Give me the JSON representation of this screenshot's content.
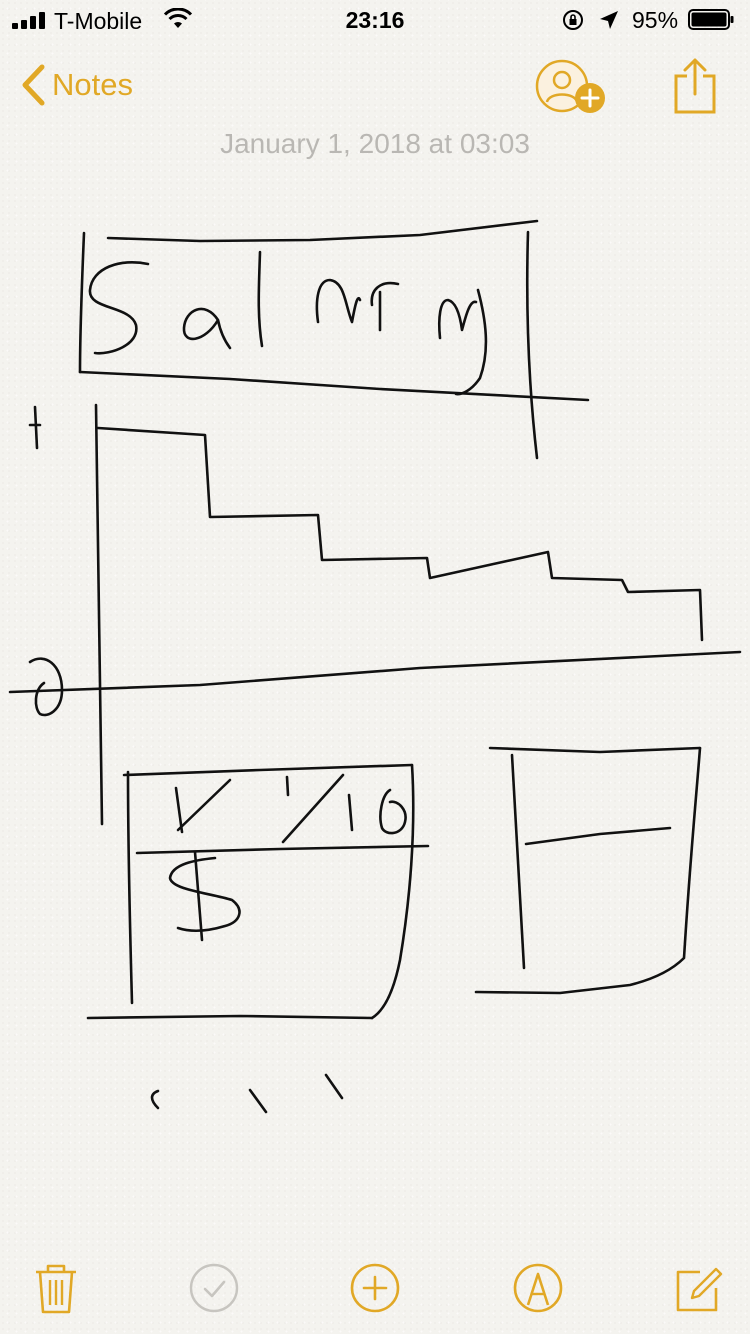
{
  "status_bar": {
    "carrier": "T-Mobile",
    "time": "23:16",
    "battery_percent": "95%",
    "icons": [
      "signal-icon",
      "wifi-icon",
      "rotation-lock-icon",
      "location-arrow-icon",
      "battery-icon"
    ]
  },
  "nav": {
    "back_label": "Notes",
    "icons": [
      "chevron-left-icon",
      "add-people-icon",
      "share-icon"
    ]
  },
  "note": {
    "date": "January 1, 2018 at 03:03",
    "handwriting": "Salary",
    "handwriting_date": "1/1/18",
    "handwriting_currency": "$"
  },
  "toolbar": {
    "icons": [
      "trash-icon",
      "checklist-icon",
      "add-icon",
      "markup-pen-icon",
      "compose-icon"
    ]
  },
  "colors": {
    "accent": "#e1a826",
    "paper": "#f4f3ef",
    "date_text": "#b9b7b3",
    "ink": "#111111"
  }
}
